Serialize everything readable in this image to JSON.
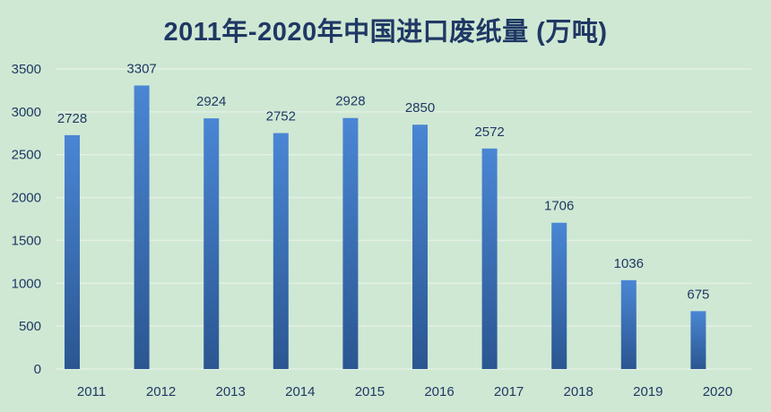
{
  "chart_data": {
    "type": "bar",
    "title": "2011年-2020年中国进口废纸量 (万吨)",
    "categories": [
      "2011",
      "2012",
      "2013",
      "2014",
      "2015",
      "2016",
      "2017",
      "2018",
      "2019",
      "2020"
    ],
    "values": [
      2728,
      3307,
      2924,
      2752,
      2928,
      2850,
      2572,
      1706,
      1036,
      675
    ],
    "ylim": [
      0,
      3500
    ],
    "yticks": [
      0,
      500,
      1000,
      1500,
      2000,
      2500,
      3000,
      3500
    ],
    "grid": true,
    "data_labels": true,
    "colors": {
      "bar_top": "#4a86d4",
      "bar_bottom": "#2b5691",
      "grid": "#e3efe6",
      "text": "#1f3864",
      "background": "#cfe8d3"
    }
  }
}
